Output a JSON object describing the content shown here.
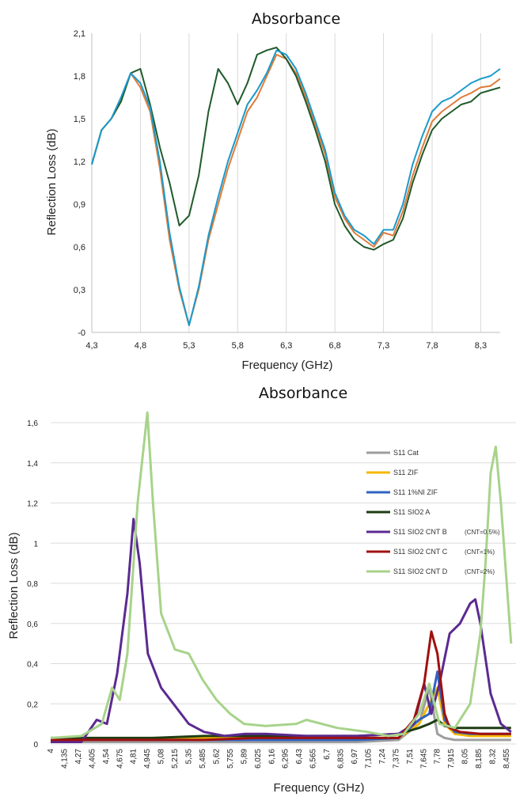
{
  "chart_data": [
    {
      "type": "line",
      "title": "Absorbance",
      "xlabel": "Frequency (GHz)",
      "ylabel": "Reflection Loss (dB)",
      "xlim": [
        4.3,
        8.5
      ],
      "ylim": [
        0,
        2.1
      ],
      "x_ticks": [
        "4,3",
        "4,8",
        "5,3",
        "5,8",
        "6,3",
        "6,8",
        "7,3",
        "7,8",
        "8,3"
      ],
      "x_tick_values": [
        4.3,
        4.8,
        5.3,
        5.8,
        6.3,
        6.8,
        7.3,
        7.8,
        8.3
      ],
      "y_ticks": [
        "-0",
        "0,3",
        "0,6",
        "0,9",
        "1,2",
        "1,5",
        "1,8",
        "2,1"
      ],
      "y_tick_values": [
        0,
        0.3,
        0.6,
        0.9,
        1.2,
        1.5,
        1.8,
        2.1
      ],
      "grid": "vertical",
      "series": [
        {
          "color": "#e07b39",
          "width": 2,
          "x": [
            4.3,
            4.4,
            4.5,
            4.6,
            4.7,
            4.8,
            4.9,
            5.0,
            5.1,
            5.2,
            5.3,
            5.4,
            5.5,
            5.6,
            5.7,
            5.8,
            5.9,
            6.0,
            6.1,
            6.2,
            6.3,
            6.4,
            6.5,
            6.6,
            6.7,
            6.8,
            6.9,
            7.0,
            7.1,
            7.2,
            7.3,
            7.4,
            7.5,
            7.6,
            7.7,
            7.8,
            7.9,
            8.0,
            8.1,
            8.2,
            8.3,
            8.4,
            8.5
          ],
          "y": [
            1.18,
            1.42,
            1.5,
            1.62,
            1.82,
            1.72,
            1.55,
            1.15,
            0.65,
            0.3,
            0.05,
            0.3,
            0.65,
            0.9,
            1.15,
            1.35,
            1.55,
            1.65,
            1.8,
            1.95,
            1.92,
            1.82,
            1.65,
            1.45,
            1.25,
            0.95,
            0.8,
            0.7,
            0.65,
            0.6,
            0.7,
            0.68,
            0.85,
            1.1,
            1.3,
            1.48,
            1.55,
            1.6,
            1.65,
            1.68,
            1.72,
            1.73,
            1.78
          ]
        },
        {
          "color": "#1f5a2b",
          "width": 2,
          "x": [
            4.3,
            4.4,
            4.5,
            4.6,
            4.7,
            4.8,
            4.9,
            5.0,
            5.1,
            5.2,
            5.3,
            5.4,
            5.5,
            5.6,
            5.7,
            5.8,
            5.9,
            6.0,
            6.1,
            6.2,
            6.3,
            6.4,
            6.5,
            6.6,
            6.7,
            6.8,
            6.9,
            7.0,
            7.1,
            7.2,
            7.3,
            7.4,
            7.5,
            7.6,
            7.7,
            7.8,
            7.9,
            8.0,
            8.1,
            8.2,
            8.3,
            8.4,
            8.5
          ],
          "y": [
            1.18,
            1.42,
            1.5,
            1.62,
            1.82,
            1.85,
            1.6,
            1.3,
            1.05,
            0.75,
            0.82,
            1.1,
            1.55,
            1.85,
            1.75,
            1.6,
            1.75,
            1.95,
            1.98,
            2.0,
            1.92,
            1.8,
            1.62,
            1.42,
            1.2,
            0.9,
            0.75,
            0.65,
            0.6,
            0.58,
            0.62,
            0.65,
            0.8,
            1.05,
            1.25,
            1.42,
            1.5,
            1.55,
            1.6,
            1.62,
            1.68,
            1.7,
            1.72
          ]
        },
        {
          "color": "#1b9acb",
          "width": 2,
          "x": [
            4.3,
            4.4,
            4.5,
            4.6,
            4.7,
            4.8,
            4.9,
            5.0,
            5.1,
            5.2,
            5.3,
            5.4,
            5.5,
            5.6,
            5.7,
            5.8,
            5.9,
            6.0,
            6.1,
            6.2,
            6.3,
            6.4,
            6.5,
            6.6,
            6.7,
            6.8,
            6.9,
            7.0,
            7.1,
            7.2,
            7.3,
            7.4,
            7.5,
            7.6,
            7.7,
            7.8,
            7.9,
            8.0,
            8.1,
            8.2,
            8.3,
            8.4,
            8.5
          ],
          "y": [
            1.18,
            1.42,
            1.5,
            1.65,
            1.82,
            1.75,
            1.58,
            1.2,
            0.7,
            0.32,
            0.05,
            0.32,
            0.68,
            0.95,
            1.2,
            1.4,
            1.6,
            1.7,
            1.82,
            1.98,
            1.95,
            1.85,
            1.68,
            1.48,
            1.28,
            0.98,
            0.82,
            0.72,
            0.68,
            0.62,
            0.72,
            0.72,
            0.9,
            1.18,
            1.38,
            1.55,
            1.62,
            1.65,
            1.7,
            1.75,
            1.78,
            1.8,
            1.85
          ]
        }
      ]
    },
    {
      "type": "line",
      "title": "Absorbance",
      "xlabel": "Frequency (GHz)",
      "ylabel": "Reflection Loss (dB)",
      "ylim": [
        0,
        1.6
      ],
      "y_ticks": [
        "0",
        "0,2",
        "0,4",
        "0,6",
        "0,8",
        "1",
        "1,2",
        "1,4",
        "1,6"
      ],
      "y_tick_values": [
        0,
        0.2,
        0.4,
        0.6,
        0.8,
        1.0,
        1.2,
        1.4,
        1.6
      ],
      "x_ticks": [
        "4",
        "4,135",
        "4,27",
        "4,405",
        "4,54",
        "4,675",
        "4,81",
        "4,945",
        "5,08",
        "5,215",
        "5,35",
        "5,485",
        "5,62",
        "5,755",
        "5,89",
        "6,025",
        "6,16",
        "6,295",
        "6,43",
        "6,565",
        "6,7",
        "6,835",
        "6,97",
        "7,105",
        "7,24",
        "7,375",
        "7,51",
        "7,645",
        "7,78",
        "7,915",
        "8,05",
        "8,185",
        "8,32",
        "8,455"
      ],
      "grid": "horizontal",
      "legend_position": "right",
      "legend": [
        {
          "name": "S11 Cat",
          "color": "#9e9e9e",
          "note": ""
        },
        {
          "name": "S11 ZIF",
          "color": "#f5b800",
          "note": ""
        },
        {
          "name": "S11 1%NI ZIF",
          "color": "#2f63c0",
          "note": ""
        },
        {
          "name": "S11 SIO2 A",
          "color": "#1e3d12",
          "note": ""
        },
        {
          "name": "S11 SIO2 CNT B",
          "color": "#5b2a91",
          "note": "(CNT=0.5%)"
        },
        {
          "name": "S11 SIO2 CNT C",
          "color": "#a01010",
          "note": "(CNT=1%)"
        },
        {
          "name": "S11 SIO2 CNT D",
          "color": "#a7d38a",
          "note": "(CNT=2%)"
        }
      ],
      "series": [
        {
          "name": "S11 Cat",
          "color": "#9e9e9e",
          "x": [
            4.0,
            4.5,
            5.0,
            5.5,
            6.0,
            6.5,
            7.0,
            7.4,
            7.6,
            7.7,
            7.78,
            7.85,
            7.95,
            8.1,
            8.3,
            8.5
          ],
          "y": [
            0.01,
            0.01,
            0.01,
            0.01,
            0.01,
            0.01,
            0.01,
            0.02,
            0.1,
            0.28,
            0.05,
            0.03,
            0.02,
            0.02,
            0.02,
            0.02
          ]
        },
        {
          "name": "S11 ZIF",
          "color": "#f5b800",
          "x": [
            4.0,
            4.5,
            5.0,
            5.5,
            6.0,
            6.5,
            7.0,
            7.4,
            7.6,
            7.7,
            7.78,
            7.85,
            7.95,
            8.1,
            8.3,
            8.5
          ],
          "y": [
            0.02,
            0.02,
            0.03,
            0.03,
            0.03,
            0.03,
            0.03,
            0.03,
            0.1,
            0.2,
            0.28,
            0.1,
            0.05,
            0.04,
            0.04,
            0.04
          ]
        },
        {
          "name": "S11 1%NI ZIF",
          "color": "#2f63c0",
          "x": [
            4.0,
            4.5,
            5.0,
            5.5,
            6.0,
            6.5,
            7.0,
            7.4,
            7.6,
            7.7,
            7.78,
            7.85,
            7.95,
            8.1,
            8.3,
            8.5
          ],
          "y": [
            0.02,
            0.02,
            0.02,
            0.02,
            0.02,
            0.02,
            0.02,
            0.03,
            0.12,
            0.15,
            0.36,
            0.12,
            0.06,
            0.05,
            0.05,
            0.05
          ]
        },
        {
          "name": "S11 SIO2 A",
          "color": "#1e3d12",
          "x": [
            4.0,
            4.5,
            5.0,
            5.5,
            6.0,
            6.5,
            7.0,
            7.4,
            7.6,
            7.7,
            7.78,
            7.85,
            7.95,
            8.1,
            8.3,
            8.5
          ],
          "y": [
            0.03,
            0.03,
            0.03,
            0.04,
            0.04,
            0.04,
            0.04,
            0.05,
            0.08,
            0.1,
            0.12,
            0.09,
            0.08,
            0.08,
            0.08,
            0.08
          ]
        },
        {
          "name": "S11 SIO2 CNT B",
          "color": "#5b2a91",
          "x": [
            4.0,
            4.3,
            4.45,
            4.55,
            4.65,
            4.75,
            4.81,
            4.87,
            4.95,
            5.08,
            5.2,
            5.35,
            5.5,
            5.7,
            5.9,
            6.1,
            6.5,
            7.0,
            7.4,
            7.55,
            7.65,
            7.72,
            7.8,
            7.9,
            8.0,
            8.1,
            8.15,
            8.2,
            8.3,
            8.4,
            8.5
          ],
          "y": [
            0.01,
            0.01,
            0.12,
            0.1,
            0.35,
            0.75,
            1.12,
            0.9,
            0.45,
            0.28,
            0.2,
            0.1,
            0.06,
            0.04,
            0.05,
            0.05,
            0.04,
            0.04,
            0.05,
            0.1,
            0.3,
            0.15,
            0.3,
            0.55,
            0.6,
            0.7,
            0.72,
            0.6,
            0.25,
            0.1,
            0.06
          ]
        },
        {
          "name": "S11 SIO2 CNT C",
          "color": "#a01010",
          "x": [
            4.0,
            4.5,
            5.0,
            5.5,
            6.0,
            6.5,
            7.0,
            7.4,
            7.55,
            7.65,
            7.72,
            7.78,
            7.85,
            7.9,
            8.0,
            8.2,
            8.5
          ],
          "y": [
            0.02,
            0.02,
            0.02,
            0.02,
            0.03,
            0.03,
            0.03,
            0.03,
            0.12,
            0.3,
            0.56,
            0.45,
            0.15,
            0.08,
            0.06,
            0.05,
            0.05
          ]
        },
        {
          "name": "S11 SIO2 CNT D",
          "color": "#a7d38a",
          "x": [
            4.0,
            4.3,
            4.5,
            4.6,
            4.675,
            4.75,
            4.85,
            4.945,
            5.0,
            5.08,
            5.215,
            5.35,
            5.485,
            5.62,
            5.755,
            5.89,
            6.1,
            6.4,
            6.5,
            6.8,
            7.1,
            7.3,
            7.45,
            7.6,
            7.7,
            7.8,
            7.95,
            8.1,
            8.2,
            8.25,
            8.3,
            8.35,
            8.4,
            8.5
          ],
          "y": [
            0.03,
            0.04,
            0.1,
            0.28,
            0.22,
            0.45,
            1.2,
            1.65,
            1.2,
            0.65,
            0.47,
            0.45,
            0.32,
            0.22,
            0.15,
            0.1,
            0.09,
            0.1,
            0.12,
            0.08,
            0.06,
            0.04,
            0.05,
            0.15,
            0.3,
            0.1,
            0.08,
            0.2,
            0.55,
            0.9,
            1.35,
            1.48,
            1.2,
            0.5
          ]
        }
      ]
    }
  ]
}
